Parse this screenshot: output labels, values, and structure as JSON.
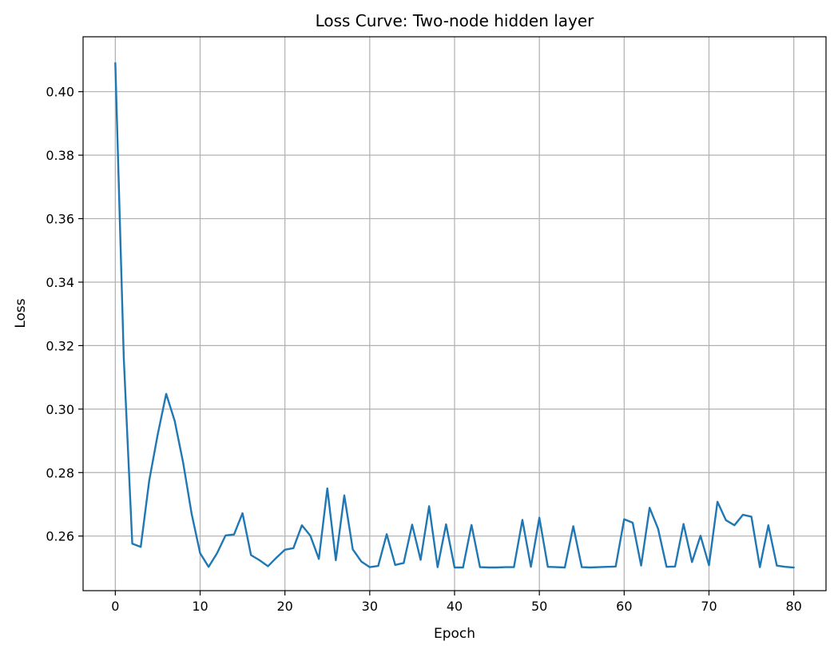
{
  "chart_data": {
    "type": "line",
    "title": "Loss Curve: Two-node hidden layer",
    "xlabel": "Epoch",
    "ylabel": "Loss",
    "xlim": [
      -3.8,
      83.8
    ],
    "ylim": [
      0.2428,
      0.4173
    ],
    "xticks": [
      0,
      10,
      20,
      30,
      40,
      50,
      60,
      70,
      80
    ],
    "xtick_labels": [
      "0",
      "10",
      "20",
      "30",
      "40",
      "50",
      "60",
      "70",
      "80"
    ],
    "yticks": [
      0.26,
      0.28,
      0.3,
      0.32,
      0.34,
      0.36,
      0.38,
      0.4
    ],
    "ytick_labels": [
      "0.26",
      "0.28",
      "0.30",
      "0.32",
      "0.34",
      "0.36",
      "0.38",
      "0.40"
    ],
    "grid": true,
    "line_color": "#1f77b4",
    "grid_color": "#b0b0b0",
    "series": [
      {
        "x": [
          0,
          1,
          2,
          3,
          4,
          5,
          6,
          7,
          8,
          9,
          10,
          11,
          12,
          13,
          14,
          15,
          16,
          17,
          18,
          19,
          20,
          21,
          22,
          23,
          24,
          25,
          26,
          27,
          28,
          29,
          30,
          31,
          32,
          33,
          34,
          35,
          36,
          37,
          38,
          39,
          40,
          41,
          42,
          43,
          44,
          45,
          46,
          47,
          48,
          49,
          50,
          51,
          52,
          53,
          54,
          55,
          56,
          57,
          58,
          59,
          60,
          61,
          62,
          63,
          64,
          65,
          66,
          67,
          68,
          69,
          70,
          71,
          72,
          73,
          74,
          75,
          76,
          77,
          78,
          79,
          80
        ],
        "values": [
          0.409,
          0.316,
          0.2576,
          0.2566,
          0.2775,
          0.292,
          0.3048,
          0.2963,
          0.2831,
          0.267,
          0.2546,
          0.2503,
          0.2546,
          0.2602,
          0.2605,
          0.2672,
          0.254,
          0.2524,
          0.2505,
          0.2532,
          0.2557,
          0.2562,
          0.2634,
          0.2601,
          0.2528,
          0.275,
          0.2524,
          0.2728,
          0.2558,
          0.252,
          0.2502,
          0.2506,
          0.2606,
          0.2509,
          0.2515,
          0.2636,
          0.2525,
          0.2694,
          0.2502,
          0.2637,
          0.2501,
          0.2501,
          0.2635,
          0.2502,
          0.2501,
          0.2501,
          0.2502,
          0.2502,
          0.2651,
          0.2503,
          0.2658,
          0.2503,
          0.2502,
          0.2501,
          0.2631,
          0.2502,
          0.2501,
          0.2502,
          0.2503,
          0.2504,
          0.2653,
          0.2642,
          0.2507,
          0.2689,
          0.2623,
          0.2503,
          0.2504,
          0.2638,
          0.2518,
          0.2601,
          0.2508,
          0.2708,
          0.265,
          0.2634,
          0.2667,
          0.2661,
          0.2502,
          0.2634,
          0.2507,
          0.2503,
          0.2501
        ]
      }
    ]
  }
}
